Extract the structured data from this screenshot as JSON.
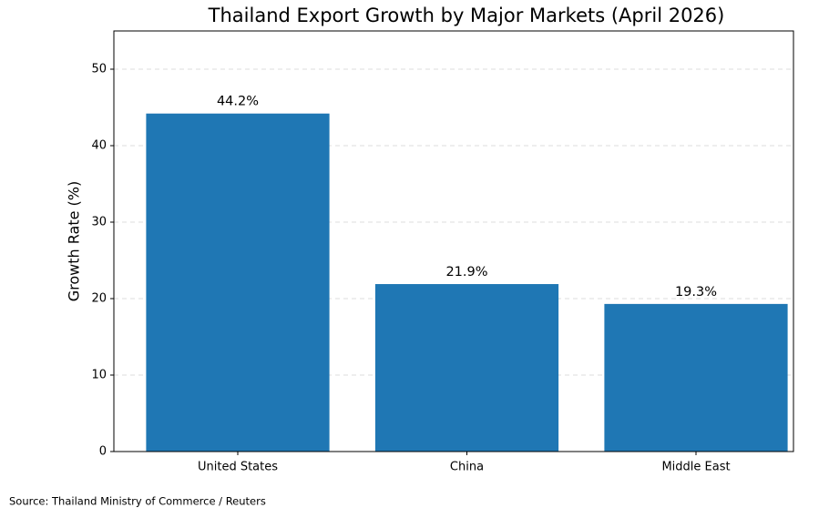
{
  "chart_data": {
    "type": "bar",
    "title": "Thailand Export Growth by Major Markets (April 2026)",
    "y_label": "Growth Rate (%)",
    "categories": [
      "United States",
      "China",
      "Middle East"
    ],
    "values": [
      44.2,
      21.9,
      19.3
    ],
    "value_labels": [
      "44.2%",
      "21.9%",
      "19.3%"
    ],
    "color": "#1f77b4",
    "ylim": [
      0,
      55
    ],
    "yticks": [
      0,
      10,
      20,
      30,
      40,
      50
    ],
    "grid": true,
    "source": "Source: Thailand Ministry of Commerce / Reuters"
  }
}
